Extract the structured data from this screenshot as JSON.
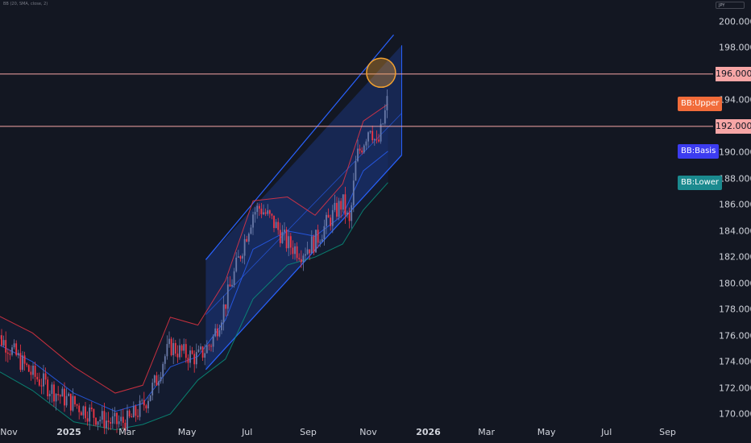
{
  "indicator": {
    "title": "BB (20, SMA, close, 2)"
  },
  "currency": "JPY",
  "colors": {
    "background": "#131722",
    "up_candle": "#6a7aa8",
    "down_candle": "#f23645",
    "bb_upper": "#f23645",
    "bb_basis": "#2962ff",
    "bb_lower": "#089981",
    "channel": "#2962ff",
    "level_line": "#f7a6a6",
    "highlight_circle": "#f0a030",
    "bb_upper_tag": "#f26c3a",
    "bb_basis_tag": "#3c3cf0",
    "bb_lower_tag": "#1b8a8f"
  },
  "levels": [
    {
      "label": "196.000",
      "value": 196
    },
    {
      "label": "192.000",
      "value": 192
    }
  ],
  "bb_tags": [
    {
      "label": "BB:Upper",
      "value": 193.7,
      "color": "#f26c3a"
    },
    {
      "label": "BB:Basis",
      "value": 190.1,
      "color": "#3c3cf0"
    },
    {
      "label": "BB:Lower",
      "value": 187.7,
      "color": "#1b8a8f"
    }
  ],
  "chart_data": {
    "type": "candlestick",
    "instrument_unit": "JPY",
    "ylim": [
      169,
      201
    ],
    "yticks": [
      {
        "label": "200.000",
        "value": 200
      },
      {
        "label": "198.000",
        "value": 198
      },
      {
        "label": "194.000",
        "value": 194
      },
      {
        "label": "190.000",
        "value": 190
      },
      {
        "label": "188.000",
        "value": 188
      },
      {
        "label": "186.000",
        "value": 186
      },
      {
        "label": "184.000",
        "value": 184
      },
      {
        "label": "182.000",
        "value": 182
      },
      {
        "label": "180.000",
        "value": 180
      },
      {
        "label": "178.000",
        "value": 178
      },
      {
        "label": "176.000",
        "value": 176
      },
      {
        "label": "174.000",
        "value": 174
      },
      {
        "label": "172.000",
        "value": 172
      },
      {
        "label": "170.000",
        "value": 170
      }
    ],
    "xticks": [
      {
        "label": "Nov",
        "date": "2024-11-01",
        "strong": false
      },
      {
        "label": "2025",
        "date": "2025-01-01",
        "strong": true
      },
      {
        "label": "Mar",
        "date": "2025-03-01",
        "strong": false
      },
      {
        "label": "May",
        "date": "2025-05-01",
        "strong": false
      },
      {
        "label": "Jul",
        "date": "2025-07-01",
        "strong": false
      },
      {
        "label": "Sep",
        "date": "2025-09-01",
        "strong": false
      },
      {
        "label": "Nov",
        "date": "2025-11-01",
        "strong": false
      },
      {
        "label": "2026",
        "date": "2026-01-01",
        "strong": true
      },
      {
        "label": "Mar",
        "date": "2026-03-01",
        "strong": false
      },
      {
        "label": "May",
        "date": "2026-05-01",
        "strong": false
      },
      {
        "label": "Jul",
        "date": "2026-07-01",
        "strong": false
      },
      {
        "label": "Sep",
        "date": "2026-09-01",
        "strong": false
      }
    ],
    "price_path": [
      [
        "2024-10-14",
        176.2
      ],
      [
        "2024-10-28",
        175.5
      ],
      [
        "2024-11-11",
        174.2
      ],
      [
        "2024-11-25",
        173.0
      ],
      [
        "2024-12-09",
        172.2
      ],
      [
        "2024-12-23",
        171.4
      ],
      [
        "2025-01-06",
        170.8
      ],
      [
        "2025-01-20",
        170.2
      ],
      [
        "2025-02-03",
        169.6
      ],
      [
        "2025-02-17",
        169.3
      ],
      [
        "2025-03-03",
        169.5
      ],
      [
        "2025-03-17",
        170.6
      ],
      [
        "2025-03-31",
        172.6
      ],
      [
        "2025-04-07",
        174.2
      ],
      [
        "2025-04-14",
        175.2
      ],
      [
        "2025-04-28",
        174.6
      ],
      [
        "2025-05-12",
        174.3
      ],
      [
        "2025-05-26",
        175.5
      ],
      [
        "2025-06-09",
        178.5
      ],
      [
        "2025-06-23",
        182.0
      ],
      [
        "2025-07-07",
        185.4
      ],
      [
        "2025-07-14",
        185.8
      ],
      [
        "2025-07-28",
        184.6
      ],
      [
        "2025-08-11",
        183.0
      ],
      [
        "2025-08-25",
        182.4
      ],
      [
        "2025-09-08",
        183.2
      ],
      [
        "2025-09-22",
        184.8
      ],
      [
        "2025-10-06",
        186.2
      ],
      [
        "2025-10-13",
        184.4
      ],
      [
        "2025-10-20",
        189.6
      ],
      [
        "2025-10-27",
        190.8
      ],
      [
        "2025-11-03",
        192.2
      ],
      [
        "2025-11-10",
        190.3
      ],
      [
        "2025-11-17",
        192.6
      ],
      [
        "2025-11-21",
        194.2
      ]
    ],
    "bollinger": {
      "upper": [
        [
          "2024-10-14",
          177.8
        ],
        [
          "2024-11-25",
          176.2
        ],
        [
          "2025-01-06",
          173.6
        ],
        [
          "2025-02-17",
          171.6
        ],
        [
          "2025-03-17",
          172.2
        ],
        [
          "2025-04-14",
          177.4
        ],
        [
          "2025-05-12",
          176.8
        ],
        [
          "2025-06-09",
          180.2
        ],
        [
          "2025-07-07",
          186.3
        ],
        [
          "2025-08-11",
          186.6
        ],
        [
          "2025-09-08",
          185.2
        ],
        [
          "2025-10-06",
          187.6
        ],
        [
          "2025-10-27",
          192.4
        ],
        [
          "2025-11-21",
          193.7
        ]
      ],
      "basis": [
        [
          "2024-10-14",
          175.6
        ],
        [
          "2024-11-25",
          174.0
        ],
        [
          "2025-01-06",
          171.6
        ],
        [
          "2025-02-17",
          170.2
        ],
        [
          "2025-03-17",
          170.8
        ],
        [
          "2025-04-14",
          173.6
        ],
        [
          "2025-05-12",
          174.4
        ],
        [
          "2025-06-09",
          177.2
        ],
        [
          "2025-07-07",
          182.6
        ],
        [
          "2025-08-11",
          184.0
        ],
        [
          "2025-09-08",
          183.6
        ],
        [
          "2025-10-06",
          185.2
        ],
        [
          "2025-10-27",
          188.6
        ],
        [
          "2025-11-21",
          190.1
        ]
      ],
      "lower": [
        [
          "2024-10-14",
          173.6
        ],
        [
          "2024-11-25",
          171.8
        ],
        [
          "2025-01-06",
          169.4
        ],
        [
          "2025-02-17",
          168.8
        ],
        [
          "2025-03-17",
          169.2
        ],
        [
          "2025-04-14",
          170.0
        ],
        [
          "2025-05-12",
          172.6
        ],
        [
          "2025-06-09",
          174.2
        ],
        [
          "2025-07-07",
          178.8
        ],
        [
          "2025-08-11",
          181.4
        ],
        [
          "2025-09-08",
          182.0
        ],
        [
          "2025-10-06",
          183.0
        ],
        [
          "2025-10-27",
          185.6
        ],
        [
          "2025-11-21",
          187.7
        ]
      ]
    },
    "channel": {
      "start": "2025-05-20",
      "end": "2025-12-05",
      "upper": [
        181.8,
        198.2
      ],
      "lower": [
        173.4,
        189.8
      ],
      "extension_top": [
        [
          2025,
          199.0
        ]
      ]
    },
    "highlight": {
      "date": "2025-11-14",
      "value": 196.1
    },
    "grid": false,
    "legend": "none"
  }
}
